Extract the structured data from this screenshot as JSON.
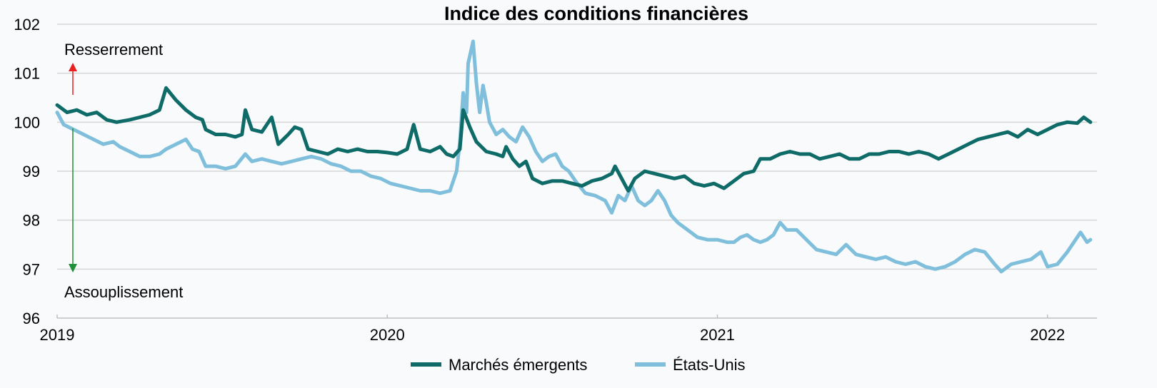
{
  "chart_data": {
    "type": "line",
    "title": "Indice des conditions financières",
    "xlabel": "",
    "ylabel": "",
    "x_range": [
      2019.0,
      2022.15
    ],
    "ylim": [
      96,
      102
    ],
    "y_ticks": [
      96,
      97,
      98,
      99,
      100,
      101,
      102
    ],
    "x_ticks": [
      {
        "value": 2019,
        "label": "2019"
      },
      {
        "value": 2020,
        "label": "2020"
      },
      {
        "value": 2021,
        "label": "2021"
      },
      {
        "value": 2022,
        "label": "2022"
      }
    ],
    "grid": "horizontal",
    "legend": "bottom-center",
    "annotations": {
      "tightening": "Resserrement",
      "easing": "Assouplissement"
    },
    "colors": {
      "tightening_arrow": "#e8201f",
      "easing_arrow": "#1f8f3a"
    },
    "series": [
      {
        "name": "Marchés émergents",
        "color": "#0e6b68",
        "points": [
          [
            2019.0,
            100.35
          ],
          [
            2019.03,
            100.2
          ],
          [
            2019.06,
            100.25
          ],
          [
            2019.09,
            100.15
          ],
          [
            2019.12,
            100.2
          ],
          [
            2019.15,
            100.05
          ],
          [
            2019.18,
            100.0
          ],
          [
            2019.22,
            100.05
          ],
          [
            2019.25,
            100.1
          ],
          [
            2019.28,
            100.15
          ],
          [
            2019.31,
            100.25
          ],
          [
            2019.33,
            100.7
          ],
          [
            2019.36,
            100.45
          ],
          [
            2019.39,
            100.25
          ],
          [
            2019.42,
            100.1
          ],
          [
            2019.44,
            100.05
          ],
          [
            2019.45,
            99.85
          ],
          [
            2019.48,
            99.75
          ],
          [
            2019.51,
            99.75
          ],
          [
            2019.54,
            99.7
          ],
          [
            2019.56,
            99.75
          ],
          [
            2019.57,
            100.25
          ],
          [
            2019.59,
            99.85
          ],
          [
            2019.62,
            99.8
          ],
          [
            2019.65,
            100.1
          ],
          [
            2019.67,
            99.55
          ],
          [
            2019.7,
            99.75
          ],
          [
            2019.72,
            99.9
          ],
          [
            2019.74,
            99.85
          ],
          [
            2019.76,
            99.45
          ],
          [
            2019.79,
            99.4
          ],
          [
            2019.82,
            99.35
          ],
          [
            2019.85,
            99.45
          ],
          [
            2019.88,
            99.4
          ],
          [
            2019.91,
            99.45
          ],
          [
            2019.94,
            99.4
          ],
          [
            2019.97,
            99.4
          ],
          [
            2020.0,
            99.38
          ],
          [
            2020.03,
            99.35
          ],
          [
            2020.06,
            99.45
          ],
          [
            2020.08,
            99.95
          ],
          [
            2020.1,
            99.45
          ],
          [
            2020.13,
            99.4
          ],
          [
            2020.16,
            99.5
          ],
          [
            2020.18,
            99.35
          ],
          [
            2020.2,
            99.3
          ],
          [
            2020.22,
            99.45
          ],
          [
            2020.23,
            100.25
          ],
          [
            2020.25,
            99.9
          ],
          [
            2020.27,
            99.6
          ],
          [
            2020.3,
            99.4
          ],
          [
            2020.33,
            99.35
          ],
          [
            2020.35,
            99.3
          ],
          [
            2020.36,
            99.5
          ],
          [
            2020.38,
            99.25
          ],
          [
            2020.4,
            99.1
          ],
          [
            2020.42,
            99.2
          ],
          [
            2020.44,
            98.85
          ],
          [
            2020.47,
            98.75
          ],
          [
            2020.5,
            98.8
          ],
          [
            2020.53,
            98.8
          ],
          [
            2020.56,
            98.75
          ],
          [
            2020.59,
            98.7
          ],
          [
            2020.62,
            98.8
          ],
          [
            2020.65,
            98.85
          ],
          [
            2020.68,
            98.95
          ],
          [
            2020.69,
            99.1
          ],
          [
            2020.71,
            98.85
          ],
          [
            2020.73,
            98.6
          ],
          [
            2020.75,
            98.85
          ],
          [
            2020.78,
            99.0
          ],
          [
            2020.81,
            98.95
          ],
          [
            2020.84,
            98.9
          ],
          [
            2020.87,
            98.85
          ],
          [
            2020.9,
            98.9
          ],
          [
            2020.93,
            98.75
          ],
          [
            2020.96,
            98.7
          ],
          [
            2020.99,
            98.75
          ],
          [
            2021.02,
            98.65
          ],
          [
            2021.05,
            98.8
          ],
          [
            2021.08,
            98.95
          ],
          [
            2021.11,
            99.0
          ],
          [
            2021.13,
            99.25
          ],
          [
            2021.16,
            99.25
          ],
          [
            2021.19,
            99.35
          ],
          [
            2021.22,
            99.4
          ],
          [
            2021.25,
            99.35
          ],
          [
            2021.28,
            99.35
          ],
          [
            2021.31,
            99.25
          ],
          [
            2021.34,
            99.3
          ],
          [
            2021.37,
            99.35
          ],
          [
            2021.4,
            99.25
          ],
          [
            2021.43,
            99.25
          ],
          [
            2021.46,
            99.35
          ],
          [
            2021.49,
            99.35
          ],
          [
            2021.52,
            99.4
          ],
          [
            2021.55,
            99.4
          ],
          [
            2021.58,
            99.35
          ],
          [
            2021.61,
            99.4
          ],
          [
            2021.64,
            99.35
          ],
          [
            2021.67,
            99.25
          ],
          [
            2021.7,
            99.35
          ],
          [
            2021.73,
            99.45
          ],
          [
            2021.76,
            99.55
          ],
          [
            2021.79,
            99.65
          ],
          [
            2021.82,
            99.7
          ],
          [
            2021.85,
            99.75
          ],
          [
            2021.88,
            99.8
          ],
          [
            2021.91,
            99.7
          ],
          [
            2021.94,
            99.85
          ],
          [
            2021.97,
            99.75
          ],
          [
            2022.0,
            99.85
          ],
          [
            2022.03,
            99.95
          ],
          [
            2022.06,
            100.0
          ],
          [
            2022.09,
            99.98
          ],
          [
            2022.11,
            100.1
          ],
          [
            2022.13,
            100.0
          ]
        ]
      },
      {
        "name": "États-Unis",
        "color": "#7fbfdc",
        "points": [
          [
            2019.0,
            100.2
          ],
          [
            2019.02,
            99.95
          ],
          [
            2019.05,
            99.85
          ],
          [
            2019.08,
            99.75
          ],
          [
            2019.11,
            99.65
          ],
          [
            2019.14,
            99.55
          ],
          [
            2019.17,
            99.6
          ],
          [
            2019.19,
            99.5
          ],
          [
            2019.22,
            99.4
          ],
          [
            2019.25,
            99.3
          ],
          [
            2019.28,
            99.3
          ],
          [
            2019.31,
            99.35
          ],
          [
            2019.33,
            99.45
          ],
          [
            2019.36,
            99.55
          ],
          [
            2019.39,
            99.65
          ],
          [
            2019.41,
            99.45
          ],
          [
            2019.43,
            99.4
          ],
          [
            2019.45,
            99.1
          ],
          [
            2019.48,
            99.1
          ],
          [
            2019.51,
            99.05
          ],
          [
            2019.54,
            99.1
          ],
          [
            2019.57,
            99.35
          ],
          [
            2019.59,
            99.2
          ],
          [
            2019.62,
            99.25
          ],
          [
            2019.65,
            99.2
          ],
          [
            2019.68,
            99.15
          ],
          [
            2019.71,
            99.2
          ],
          [
            2019.74,
            99.25
          ],
          [
            2019.77,
            99.3
          ],
          [
            2019.8,
            99.25
          ],
          [
            2019.83,
            99.15
          ],
          [
            2019.86,
            99.1
          ],
          [
            2019.89,
            99.0
          ],
          [
            2019.92,
            99.0
          ],
          [
            2019.95,
            98.9
          ],
          [
            2019.98,
            98.85
          ],
          [
            2020.01,
            98.75
          ],
          [
            2020.04,
            98.7
          ],
          [
            2020.07,
            98.65
          ],
          [
            2020.1,
            98.6
          ],
          [
            2020.13,
            98.6
          ],
          [
            2020.16,
            98.55
          ],
          [
            2020.19,
            98.6
          ],
          [
            2020.21,
            99.0
          ],
          [
            2020.22,
            99.6
          ],
          [
            2020.23,
            100.6
          ],
          [
            2020.24,
            100.2
          ],
          [
            2020.245,
            101.2
          ],
          [
            2020.26,
            101.65
          ],
          [
            2020.27,
            100.8
          ],
          [
            2020.28,
            100.2
          ],
          [
            2020.29,
            100.75
          ],
          [
            2020.3,
            100.4
          ],
          [
            2020.31,
            100.0
          ],
          [
            2020.33,
            99.75
          ],
          [
            2020.35,
            99.85
          ],
          [
            2020.37,
            99.7
          ],
          [
            2020.39,
            99.6
          ],
          [
            2020.41,
            99.9
          ],
          [
            2020.43,
            99.7
          ],
          [
            2020.45,
            99.4
          ],
          [
            2020.47,
            99.2
          ],
          [
            2020.49,
            99.3
          ],
          [
            2020.51,
            99.35
          ],
          [
            2020.53,
            99.1
          ],
          [
            2020.55,
            99.0
          ],
          [
            2020.57,
            98.8
          ],
          [
            2020.6,
            98.55
          ],
          [
            2020.63,
            98.5
          ],
          [
            2020.66,
            98.4
          ],
          [
            2020.68,
            98.15
          ],
          [
            2020.7,
            98.5
          ],
          [
            2020.72,
            98.4
          ],
          [
            2020.74,
            98.7
          ],
          [
            2020.76,
            98.4
          ],
          [
            2020.78,
            98.3
          ],
          [
            2020.8,
            98.4
          ],
          [
            2020.82,
            98.6
          ],
          [
            2020.84,
            98.4
          ],
          [
            2020.86,
            98.1
          ],
          [
            2020.88,
            97.95
          ],
          [
            2020.91,
            97.8
          ],
          [
            2020.94,
            97.65
          ],
          [
            2020.97,
            97.6
          ],
          [
            2021.0,
            97.6
          ],
          [
            2021.03,
            97.55
          ],
          [
            2021.05,
            97.55
          ],
          [
            2021.07,
            97.65
          ],
          [
            2021.09,
            97.7
          ],
          [
            2021.11,
            97.6
          ],
          [
            2021.13,
            97.55
          ],
          [
            2021.15,
            97.6
          ],
          [
            2021.17,
            97.7
          ],
          [
            2021.19,
            97.95
          ],
          [
            2021.21,
            97.8
          ],
          [
            2021.24,
            97.8
          ],
          [
            2021.27,
            97.6
          ],
          [
            2021.3,
            97.4
          ],
          [
            2021.33,
            97.35
          ],
          [
            2021.36,
            97.3
          ],
          [
            2021.39,
            97.5
          ],
          [
            2021.42,
            97.3
          ],
          [
            2021.45,
            97.25
          ],
          [
            2021.48,
            97.2
          ],
          [
            2021.51,
            97.25
          ],
          [
            2021.54,
            97.15
          ],
          [
            2021.57,
            97.1
          ],
          [
            2021.6,
            97.15
          ],
          [
            2021.63,
            97.05
          ],
          [
            2021.66,
            97.0
          ],
          [
            2021.69,
            97.05
          ],
          [
            2021.72,
            97.15
          ],
          [
            2021.75,
            97.3
          ],
          [
            2021.78,
            97.4
          ],
          [
            2021.81,
            97.35
          ],
          [
            2021.84,
            97.1
          ],
          [
            2021.86,
            96.95
          ],
          [
            2021.89,
            97.1
          ],
          [
            2021.92,
            97.15
          ],
          [
            2021.95,
            97.2
          ],
          [
            2021.98,
            97.35
          ],
          [
            2022.0,
            97.05
          ],
          [
            2022.03,
            97.1
          ],
          [
            2022.06,
            97.35
          ],
          [
            2022.08,
            97.55
          ],
          [
            2022.1,
            97.75
          ],
          [
            2022.12,
            97.55
          ],
          [
            2022.13,
            97.6
          ]
        ]
      }
    ]
  }
}
